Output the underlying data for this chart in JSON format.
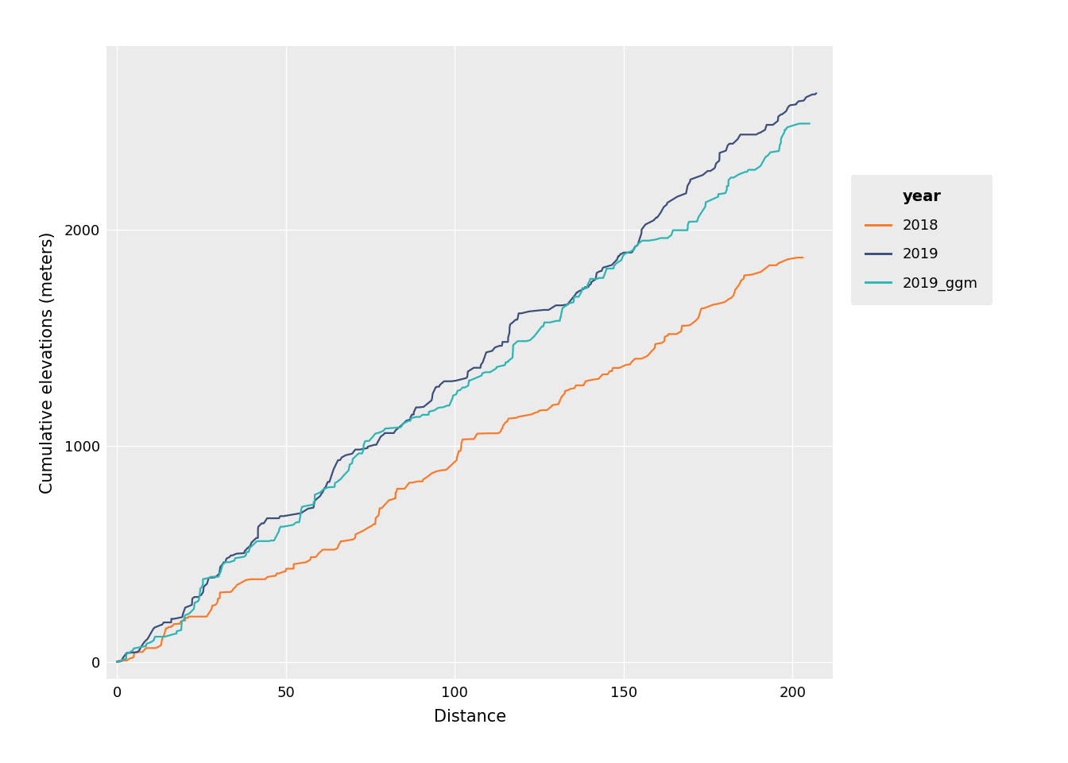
{
  "title": "",
  "xlabel": "Distance",
  "ylabel": "Cumulative elevations (meters)",
  "panel_bg": "#EBEBEB",
  "fig_bg": "#FFFFFF",
  "legend_title": "year",
  "series_order": [
    "2018",
    "2019",
    "2019_ggm"
  ],
  "colors": {
    "2018": "#F97B2A",
    "2019": "#3C4F7A",
    "2019_ggm": "#2CB5B5"
  },
  "end_dist": {
    "2018": 203,
    "2019": 207,
    "2019_ggm": 205
  },
  "end_elev": {
    "2018": 1870,
    "2019": 2630,
    "2019_ggm": 2490
  },
  "xlim": [
    -3,
    212
  ],
  "ylim": [
    -80,
    2850
  ],
  "xticks": [
    0,
    50,
    100,
    150,
    200
  ],
  "yticks": [
    0,
    1000,
    2000
  ],
  "grid_color": "#FFFFFF",
  "linewidth": 1.6,
  "tick_labelsize": 13,
  "axis_labelsize": 15,
  "legend_title_fontsize": 14,
  "legend_fontsize": 13
}
